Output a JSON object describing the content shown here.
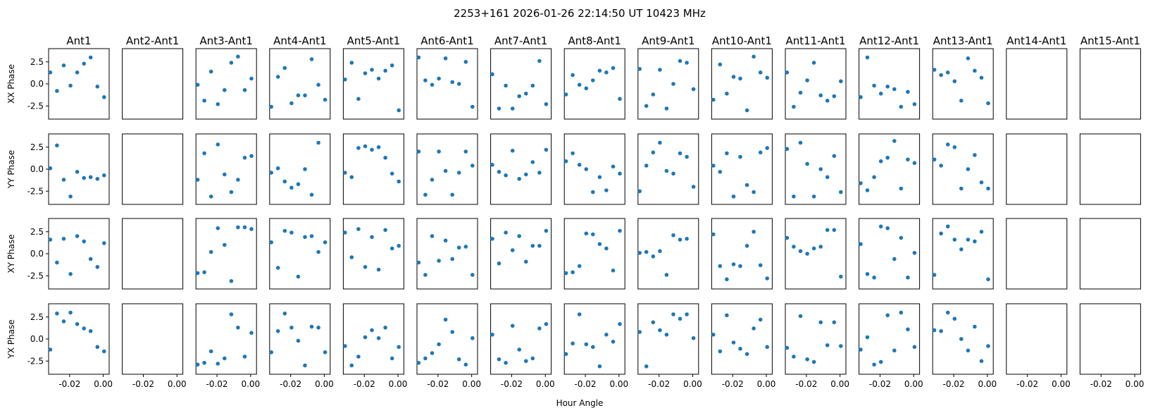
{
  "chart_data": {
    "type": "scatter",
    "title": "2253+161  2026-01-26 22:14:50 UT  10423 MHz",
    "xlabel": "Hour Angle",
    "columns": [
      "Ant1",
      "Ant2-Ant1",
      "Ant3-Ant1",
      "Ant4-Ant1",
      "Ant5-Ant1",
      "Ant6-Ant1",
      "Ant7-Ant1",
      "Ant8-Ant1",
      "Ant9-Ant1",
      "Ant10-Ant1",
      "Ant11-Ant1",
      "Ant12-Ant1",
      "Ant13-Ant1",
      "Ant14-Ant1",
      "Ant15-Ant1"
    ],
    "rows": [
      "XX Phase",
      "YY Phase",
      "XY Phase",
      "YX Phase"
    ],
    "xlim": [
      -0.0325,
      0.0035
    ],
    "ylim": [
      -4.0,
      4.0
    ],
    "xticks": [
      -0.02,
      0.0
    ],
    "xtick_labels": [
      "-0.02",
      "0.00"
    ],
    "yticks": [
      2.5,
      0.0,
      -2.5
    ],
    "ytick_labels": [
      "2.5",
      "0.0",
      "-2.5"
    ],
    "marker_color": "#1f77b4",
    "x": [
      -0.0315,
      -0.0275,
      -0.0235,
      -0.0195,
      -0.0155,
      -0.0115,
      -0.0075,
      -0.0035,
      0.0005,
      0.0025
    ],
    "panels": [
      [
        [
          1.3,
          -0.8,
          2.1,
          -0.2,
          1.3,
          2.3,
          3.0,
          -0.3,
          -1.5,
          null
        ],
        null,
        [
          -0.1,
          -1.9,
          1.4,
          -2.3,
          -0.7,
          2.4,
          3.1,
          -0.7,
          0.6,
          null
        ],
        [
          -2.6,
          0.8,
          1.8,
          -2.2,
          -1.3,
          -1.3,
          2.8,
          -0.1,
          -1.8,
          null
        ],
        [
          0.5,
          2.4,
          -1.7,
          1.2,
          1.6,
          0.6,
          1.5,
          2.1,
          -3.0,
          null
        ],
        [
          3.0,
          0.4,
          -0.1,
          0.6,
          2.9,
          0.2,
          0.0,
          2.5,
          -2.6,
          null
        ],
        [
          1.1,
          -2.8,
          -0.2,
          -2.8,
          -1.4,
          -1.1,
          -0.2,
          2.6,
          -2.3,
          null
        ],
        [
          -1.2,
          1.0,
          -0.1,
          -0.5,
          0.4,
          1.5,
          1.3,
          1.8,
          -1.7,
          null
        ],
        [
          1.7,
          -2.5,
          -1.2,
          1.6,
          -2.8,
          0.0,
          2.6,
          2.4,
          -0.6,
          null
        ],
        [
          -1.8,
          2.2,
          -1.1,
          0.8,
          0.6,
          -3.0,
          3.1,
          1.3,
          0.7,
          null
        ],
        [
          1.3,
          -2.6,
          -1.0,
          0.4,
          2.4,
          -1.3,
          -1.9,
          -1.4,
          0.3,
          null
        ],
        [
          -1.5,
          3.0,
          -0.2,
          -1.1,
          -0.3,
          -0.6,
          -2.6,
          -0.9,
          -2.3,
          null
        ],
        [
          1.6,
          1.0,
          1.3,
          0.3,
          -1.9,
          2.9,
          1.5,
          0.7,
          -2.2,
          null
        ],
        null,
        null
      ],
      [
        [
          0.1,
          2.7,
          -1.2,
          -3.1,
          -0.3,
          -1.0,
          -0.9,
          -1.1,
          -0.7,
          null
        ],
        null,
        [
          -1.2,
          1.8,
          -3.1,
          2.8,
          -0.6,
          -2.6,
          -1.2,
          1.3,
          1.5,
          null
        ],
        [
          -0.4,
          0.1,
          -1.4,
          -2.1,
          -1.7,
          0.0,
          -2.9,
          3.0,
          null,
          null
        ],
        [
          -0.4,
          -0.9,
          2.4,
          2.6,
          2.2,
          2.5,
          1.3,
          -0.5,
          -1.4,
          null
        ],
        [
          2.0,
          -2.9,
          -1.2,
          2.0,
          -0.2,
          -2.9,
          -0.4,
          2.0,
          0.4,
          null
        ],
        [
          0.5,
          -0.3,
          -0.7,
          2.1,
          -1.1,
          -0.6,
          0.8,
          -0.4,
          2.2,
          null
        ],
        [
          0.9,
          1.8,
          0.5,
          0.0,
          -2.6,
          -0.9,
          -2.4,
          0.3,
          -0.5,
          null
        ],
        [
          -2.5,
          0.4,
          1.9,
          3.0,
          -0.2,
          -0.5,
          1.8,
          1.4,
          -2.0,
          null
        ],
        [
          0.4,
          -0.3,
          1.8,
          -3.1,
          1.4,
          -1.8,
          -2.6,
          1.9,
          2.4,
          null
        ],
        [
          2.3,
          -3.1,
          3.0,
          0.6,
          -3.1,
          0.0,
          -0.9,
          1.5,
          -2.6,
          null
        ],
        [
          -1.6,
          -2.4,
          -0.9,
          0.9,
          1.3,
          3.2,
          -2.2,
          1.1,
          0.7,
          null
        ],
        [
          1.1,
          0.4,
          2.8,
          2.5,
          -2.2,
          0.0,
          1.6,
          -1.5,
          -2.2,
          null
        ],
        null,
        null
      ],
      [
        [
          1.6,
          -1.0,
          1.7,
          -2.3,
          2.0,
          1.4,
          -0.6,
          -1.5,
          1.2,
          null
        ],
        null,
        [
          -2.2,
          -2.1,
          0.2,
          2.9,
          1.0,
          -3.1,
          3.0,
          3.0,
          2.8,
          null
        ],
        [
          1.3,
          -1.6,
          2.6,
          2.4,
          -2.6,
          1.9,
          2.0,
          0.2,
          1.3,
          null
        ],
        [
          2.4,
          -0.4,
          2.8,
          -1.5,
          1.9,
          -1.8,
          2.7,
          0.6,
          0.9,
          null
        ],
        [
          -1.0,
          -2.4,
          2.0,
          -0.8,
          1.5,
          -0.6,
          0.7,
          0.8,
          -2.4,
          null
        ],
        [
          1.7,
          -1.1,
          2.4,
          0.4,
          2.0,
          -0.9,
          0.9,
          0.9,
          2.6,
          null
        ],
        [
          -2.2,
          -2.1,
          -1.4,
          2.3,
          2.2,
          1.1,
          0.6,
          -1.9,
          2.6,
          null
        ],
        [
          0.1,
          0.2,
          -0.3,
          0.3,
          -2.4,
          2.1,
          1.6,
          1.7,
          null,
          null
        ],
        [
          2.2,
          -1.4,
          -2.9,
          -1.2,
          -1.4,
          0.9,
          2.5,
          -1.3,
          -2.8,
          null
        ],
        [
          1.8,
          0.8,
          0.3,
          0.0,
          0.6,
          0.8,
          2.7,
          2.7,
          -2.6,
          null
        ],
        [
          1.1,
          -2.3,
          -2.7,
          3.1,
          2.9,
          -0.6,
          1.8,
          -2.7,
          0.1,
          null
        ],
        [
          -2.4,
          2.3,
          3.1,
          1.6,
          0.5,
          1.6,
          1.4,
          2.5,
          -2.9,
          null
        ],
        null,
        null
      ],
      [
        [
          -1.2,
          2.9,
          2.0,
          3.0,
          1.7,
          1.2,
          0.9,
          -0.9,
          -1.4,
          null
        ],
        null,
        [
          -2.9,
          -2.7,
          -1.4,
          -2.8,
          -2.2,
          2.8,
          1.3,
          -2.0,
          0.7,
          null
        ],
        [
          -1.5,
          0.9,
          2.9,
          1.3,
          -0.2,
          -3.0,
          1.4,
          1.3,
          -1.5,
          null
        ],
        [
          -0.8,
          -3.0,
          -2.0,
          0.2,
          1.0,
          0.1,
          1.3,
          -2.2,
          -0.9,
          null
        ],
        [
          -2.7,
          -2.2,
          -1.6,
          -0.6,
          2.2,
          0.8,
          -2.3,
          -2.9,
          0.1,
          null
        ],
        [
          0.5,
          -2.3,
          -2.7,
          1.5,
          -1.2,
          -2.5,
          -2.2,
          1.2,
          1.7,
          null
        ],
        [
          -1.7,
          -0.5,
          2.8,
          -0.6,
          -0.9,
          -3.1,
          0.5,
          -0.3,
          1.7,
          null
        ],
        [
          0.8,
          -3.1,
          1.9,
          1.0,
          0.5,
          2.8,
          2.3,
          2.8,
          0.1,
          null
        ],
        [
          0.5,
          -1.4,
          2.7,
          -0.4,
          -1.1,
          -1.7,
          1.2,
          2.2,
          -0.9,
          null
        ],
        [
          -1.0,
          -2.0,
          2.6,
          -2.3,
          -2.6,
          1.9,
          -0.7,
          1.9,
          -0.8,
          null
        ],
        [
          -1.2,
          0.2,
          -2.9,
          -2.6,
          2.7,
          -1.3,
          3.0,
          1.1,
          -0.9,
          null
        ],
        [
          1.0,
          0.9,
          3.0,
          2.3,
          0.0,
          -1.3,
          1.4,
          -2.5,
          -0.8,
          null
        ],
        null,
        null
      ]
    ]
  }
}
